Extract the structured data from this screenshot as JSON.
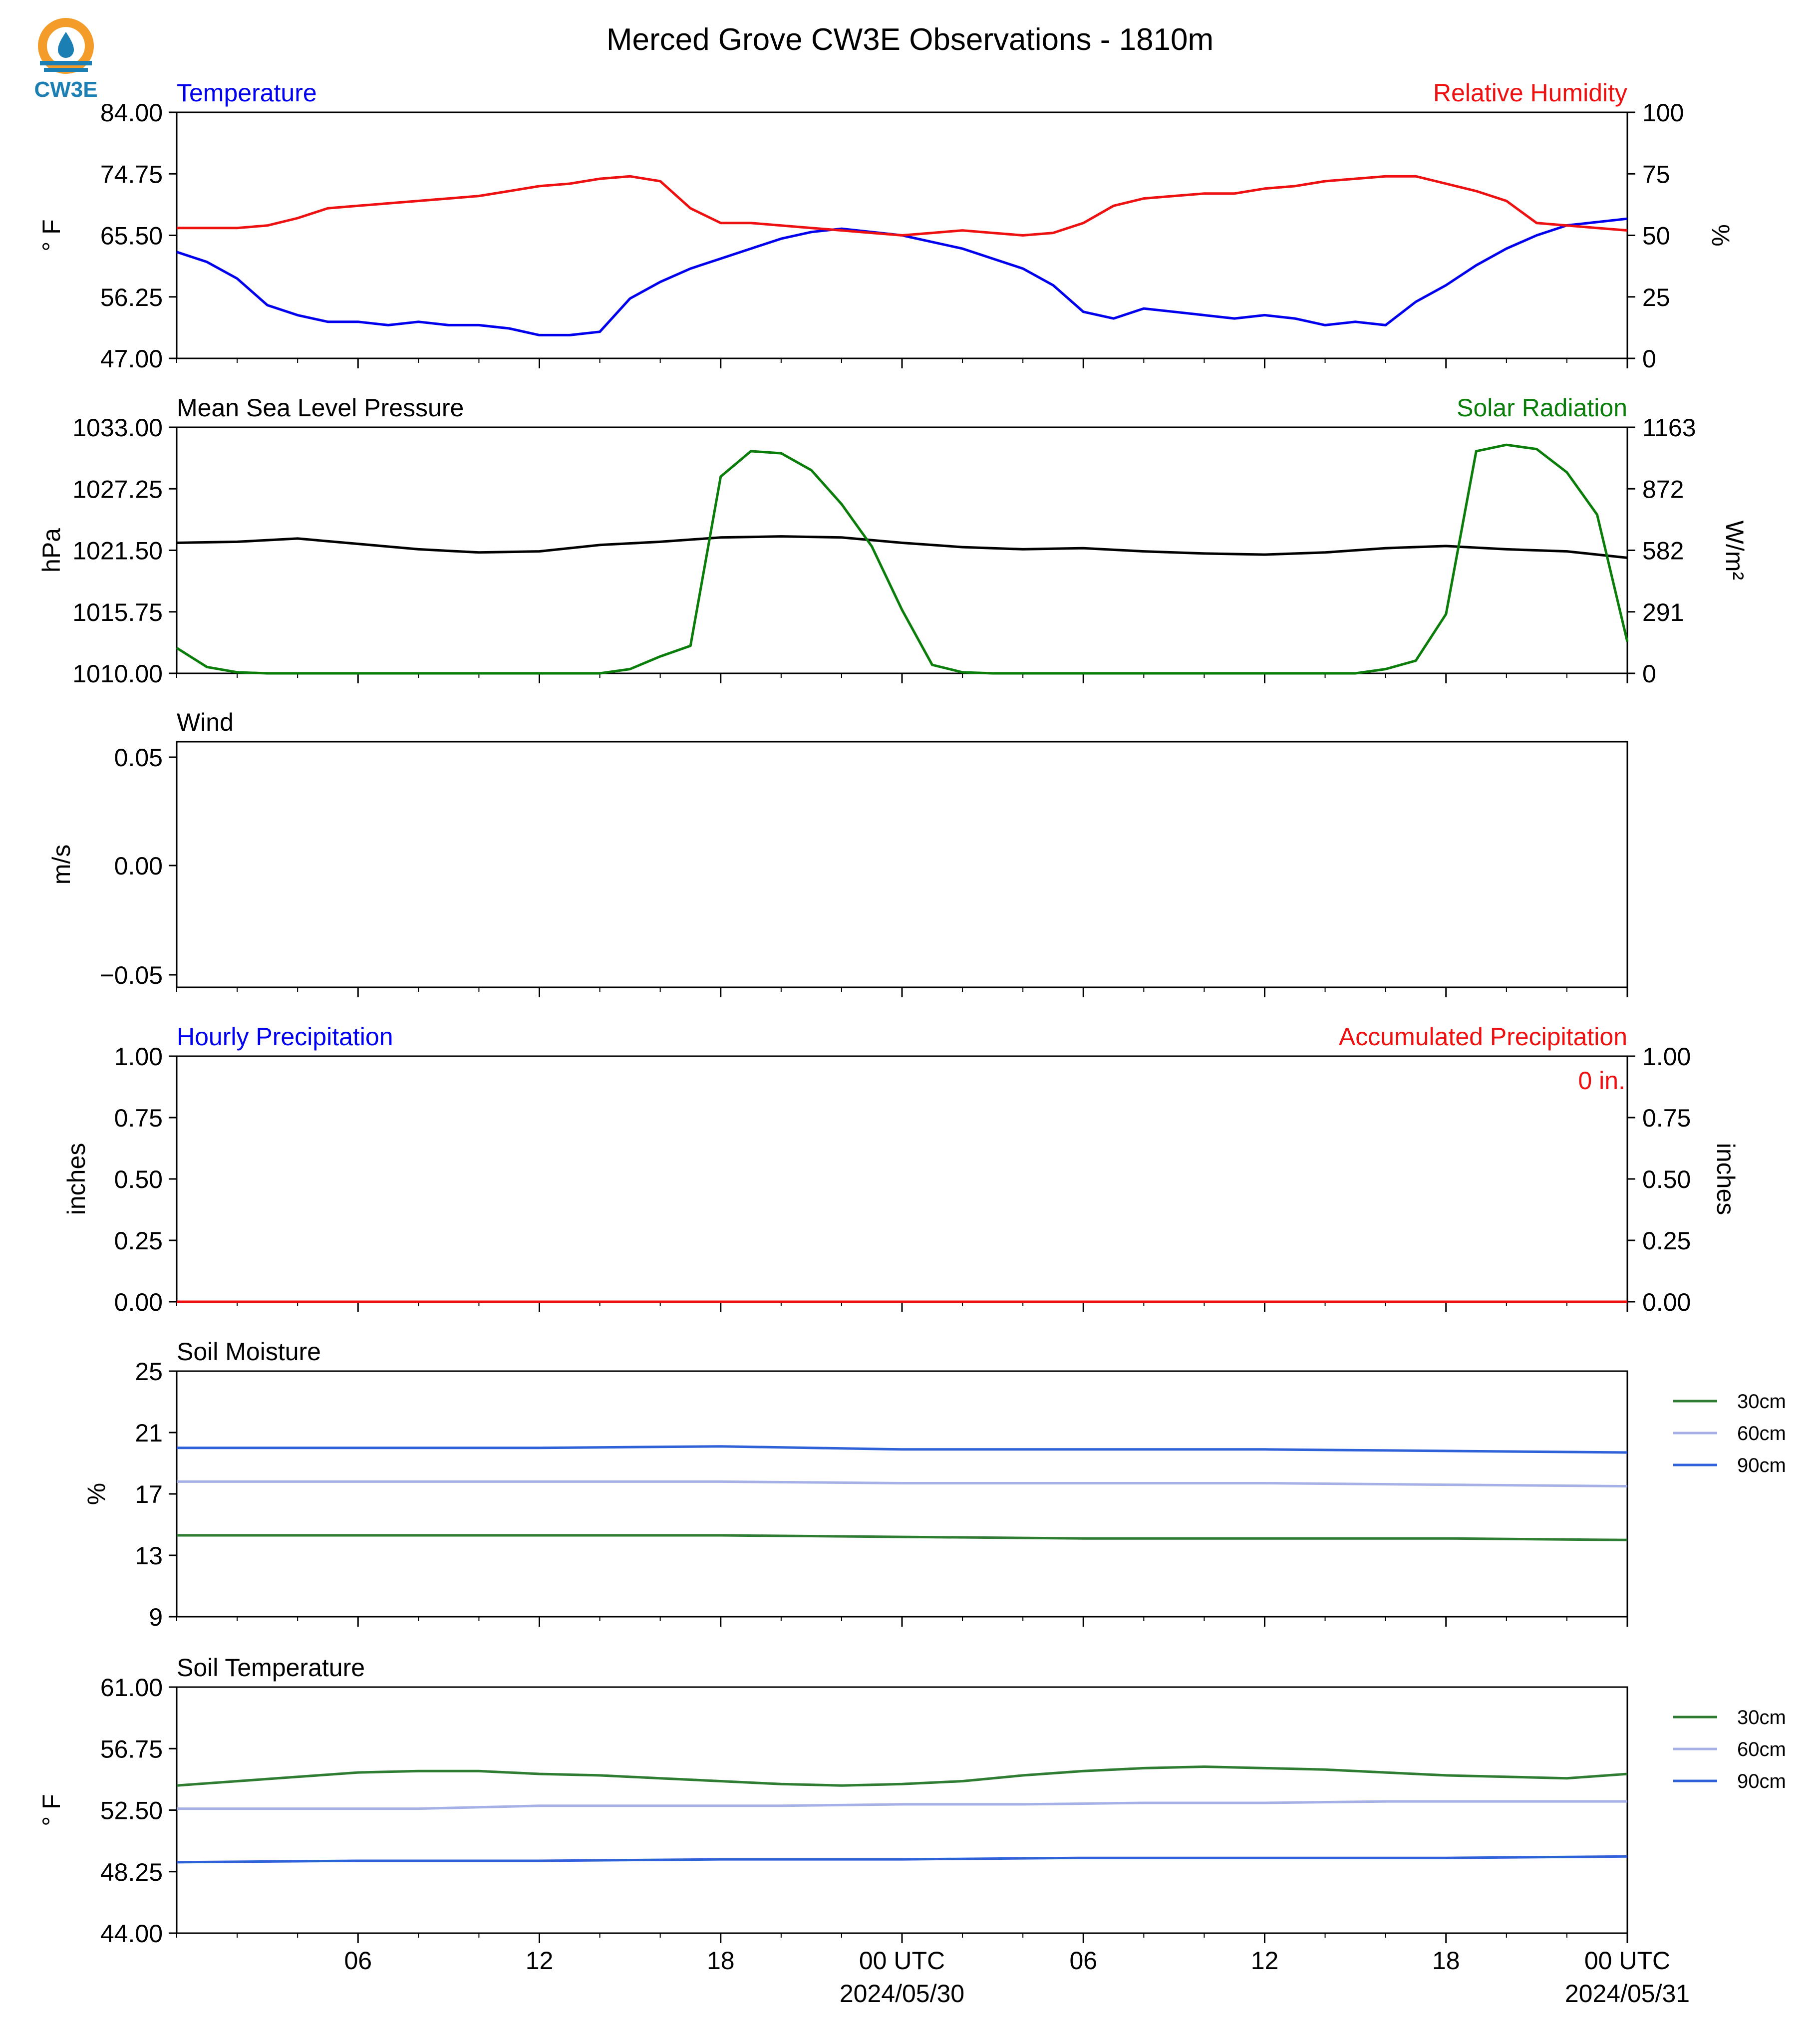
{
  "title": "Merced Grove CW3E Observations - 1810m",
  "logo": {
    "text": "CW3E",
    "colors": {
      "ring": "#f39c2a",
      "wave": "#1b7fb3",
      "text": "#1b7fb3"
    }
  },
  "x_axis": {
    "tick_labels": [
      "06",
      "12",
      "18",
      "00 UTC",
      "06",
      "12",
      "18",
      "00 UTC"
    ],
    "date_labels": [
      "2024/05/30",
      "2024/05/31"
    ]
  },
  "panels": {
    "temp_rh": {
      "left_title": "Temperature",
      "right_title": "Relative Humidity",
      "left_unit": "$^\\circ$F",
      "right_unit": "%",
      "left_ticks": [
        "84.00",
        "74.75",
        "65.50",
        "56.25",
        "47.00"
      ],
      "right_ticks": [
        "100",
        "75",
        "50",
        "25",
        "0"
      ]
    },
    "pressure_solar": {
      "left_title": "Mean Sea Level Pressure",
      "right_title": "Solar Radiation",
      "left_unit": "hPa",
      "right_unit": "W/m²",
      "left_ticks": [
        "1033.00",
        "1027.25",
        "1021.50",
        "1015.75",
        "1010.00"
      ],
      "right_ticks": [
        "1163",
        "872",
        "582",
        "291",
        "0"
      ]
    },
    "wind": {
      "left_title": "Wind",
      "left_unit": "m/s",
      "left_ticks": [
        "0.05",
        "0.00",
        "−0.05"
      ]
    },
    "precip": {
      "left_title": "Hourly Precipitation",
      "right_title": "Accumulated Precipitation",
      "left_unit": "inches",
      "right_unit": "inches",
      "left_ticks": [
        "1.00",
        "0.75",
        "0.50",
        "0.25",
        "0.00"
      ],
      "right_ticks": [
        "1.00",
        "0.75",
        "0.50",
        "0.25",
        "0.00"
      ],
      "total_label": "0 in."
    },
    "soil_moisture": {
      "left_title": "Soil Moisture",
      "left_unit": "%",
      "left_ticks": [
        "25",
        "21",
        "17",
        "13",
        "9"
      ],
      "legend": [
        "30cm",
        "60cm",
        "90cm"
      ]
    },
    "soil_temp": {
      "left_title": "Soil Temperature",
      "left_unit": "$^\\circ$F",
      "left_ticks": [
        "61.00",
        "56.75",
        "52.50",
        "48.25",
        "44.00"
      ],
      "legend": [
        "30cm",
        "60cm",
        "90cm"
      ]
    }
  },
  "colors": {
    "temperature": "#0000ee",
    "humidity": "#ee1111",
    "pressure": "#000000",
    "solar": "#0a7d0a",
    "precip_hourly": "#0000ee",
    "precip_accum": "#ee1111",
    "soil_30cm": "#2e7d32",
    "soil_60cm": "#a4b0e6",
    "soil_90cm": "#2f62d8"
  },
  "chart_data": [
    {
      "type": "line",
      "x_unit": "hours",
      "xlim": [
        1,
        49
      ],
      "ylim": [
        47,
        84
      ],
      "y2lim": [
        0,
        100
      ],
      "series": [
        {
          "name": "Temperature",
          "axis": "left",
          "x": [
            1,
            2,
            3,
            4,
            5,
            6,
            7,
            8,
            9,
            10,
            11,
            12,
            13,
            14,
            15,
            16,
            17,
            18,
            19,
            20,
            21,
            22,
            23,
            24,
            25,
            26,
            27,
            28,
            29,
            30,
            31,
            32,
            33,
            34,
            35,
            36,
            37,
            38,
            39,
            40,
            41,
            42,
            43,
            44,
            45,
            46,
            47,
            48,
            49
          ],
          "values": [
            63.0,
            61.5,
            59.0,
            55.0,
            53.5,
            52.5,
            52.5,
            52.0,
            52.5,
            52.0,
            52.0,
            51.5,
            50.5,
            50.5,
            51.0,
            56.0,
            58.5,
            60.5,
            62.0,
            63.5,
            65.0,
            66.0,
            66.5,
            66.0,
            65.5,
            64.5,
            63.5,
            62.0,
            60.5,
            58.0,
            54.0,
            53.0,
            54.5,
            54.0,
            53.5,
            53.0,
            53.5,
            53.0,
            52.0,
            52.5,
            52.0,
            55.5,
            58.0,
            61.0,
            63.5,
            65.5,
            67.0,
            67.5,
            68.0
          ]
        },
        {
          "name": "Relative Humidity",
          "axis": "right",
          "x": [
            1,
            2,
            3,
            4,
            5,
            6,
            7,
            8,
            9,
            10,
            11,
            12,
            13,
            14,
            15,
            16,
            17,
            18,
            19,
            20,
            21,
            22,
            23,
            24,
            25,
            26,
            27,
            28,
            29,
            30,
            31,
            32,
            33,
            34,
            35,
            36,
            37,
            38,
            39,
            40,
            41,
            42,
            43,
            44,
            45,
            46,
            47,
            48,
            49
          ],
          "values": [
            53,
            53,
            53,
            54,
            57,
            61,
            62,
            63,
            64,
            65,
            66,
            68,
            70,
            71,
            73,
            74,
            72,
            61,
            55,
            55,
            54,
            53,
            52,
            51,
            50,
            51,
            52,
            51,
            50,
            51,
            55,
            62,
            65,
            66,
            67,
            67,
            69,
            70,
            72,
            73,
            74,
            74,
            71,
            68,
            64,
            55,
            54,
            53,
            52
          ]
        }
      ]
    },
    {
      "type": "line",
      "x_unit": "hours",
      "xlim": [
        1,
        49
      ],
      "ylim": [
        1010,
        1033
      ],
      "y2lim": [
        0,
        1163
      ],
      "series": [
        {
          "name": "Mean Sea Level Pressure",
          "axis": "left",
          "x": [
            1,
            3,
            5,
            7,
            9,
            11,
            13,
            15,
            17,
            19,
            21,
            23,
            25,
            27,
            29,
            31,
            33,
            35,
            37,
            39,
            41,
            43,
            45,
            47,
            49
          ],
          "values": [
            1022.2,
            1022.3,
            1022.6,
            1022.1,
            1021.6,
            1021.3,
            1021.4,
            1022.0,
            1022.3,
            1022.7,
            1022.8,
            1022.7,
            1022.2,
            1021.8,
            1021.6,
            1021.7,
            1021.4,
            1021.2,
            1021.1,
            1021.3,
            1021.7,
            1021.9,
            1021.6,
            1021.4,
            1020.8
          ]
        },
        {
          "name": "Solar Radiation",
          "axis": "right",
          "x": [
            1,
            2,
            3,
            4,
            5,
            6,
            7,
            8,
            9,
            10,
            11,
            12,
            13,
            14,
            15,
            16,
            17,
            18,
            19,
            20,
            21,
            22,
            23,
            24,
            25,
            26,
            27,
            28,
            29,
            30,
            31,
            32,
            33,
            34,
            35,
            36,
            37,
            38,
            39,
            40,
            41,
            42,
            43,
            44,
            45,
            46,
            47,
            48,
            49
          ],
          "values": [
            120,
            30,
            5,
            0,
            0,
            0,
            0,
            0,
            0,
            0,
            0,
            0,
            0,
            0,
            0,
            20,
            80,
            130,
            930,
            1050,
            1040,
            960,
            800,
            600,
            300,
            40,
            5,
            0,
            0,
            0,
            0,
            0,
            0,
            0,
            0,
            0,
            0,
            0,
            0,
            0,
            20,
            60,
            280,
            1050,
            1080,
            1060,
            950,
            750,
            150
          ]
        }
      ]
    },
    {
      "type": "line",
      "x_unit": "hours",
      "xlim": [
        1,
        49
      ],
      "ylim": [
        -0.055,
        0.055
      ],
      "series": []
    },
    {
      "type": "line",
      "x_unit": "hours",
      "xlim": [
        1,
        49
      ],
      "ylim": [
        0,
        1
      ],
      "y2lim": [
        0,
        1
      ],
      "series": [
        {
          "name": "Hourly Precipitation",
          "axis": "left",
          "x": [
            1,
            49
          ],
          "values": [
            0,
            0
          ]
        },
        {
          "name": "Accumulated Precipitation",
          "axis": "right",
          "x": [
            1,
            49
          ],
          "values": [
            0,
            0
          ]
        }
      ]
    },
    {
      "type": "line",
      "x_unit": "hours",
      "xlim": [
        1,
        49
      ],
      "ylim": [
        9,
        25
      ],
      "series": [
        {
          "name": "30cm",
          "x": [
            1,
            7,
            13,
            19,
            25,
            31,
            37,
            43,
            49
          ],
          "values": [
            14.3,
            14.3,
            14.3,
            14.3,
            14.2,
            14.1,
            14.1,
            14.1,
            14.0
          ]
        },
        {
          "name": "60cm",
          "x": [
            1,
            7,
            13,
            19,
            25,
            31,
            37,
            43,
            49
          ],
          "values": [
            17.8,
            17.8,
            17.8,
            17.8,
            17.7,
            17.7,
            17.7,
            17.6,
            17.5
          ]
        },
        {
          "name": "90cm",
          "x": [
            1,
            7,
            13,
            19,
            25,
            31,
            37,
            43,
            49
          ],
          "values": [
            20.0,
            20.0,
            20.0,
            20.1,
            19.9,
            19.9,
            19.9,
            19.8,
            19.7
          ]
        }
      ]
    },
    {
      "type": "line",
      "x_unit": "hours",
      "xlim": [
        1,
        49
      ],
      "ylim": [
        44,
        61
      ],
      "series": [
        {
          "name": "30cm",
          "x": [
            1,
            3,
            5,
            7,
            9,
            11,
            13,
            15,
            17,
            19,
            21,
            23,
            25,
            27,
            29,
            31,
            33,
            35,
            37,
            39,
            41,
            43,
            45,
            47,
            49
          ],
          "values": [
            54.2,
            54.5,
            54.8,
            55.1,
            55.2,
            55.2,
            55.0,
            54.9,
            54.7,
            54.5,
            54.3,
            54.2,
            54.3,
            54.5,
            54.9,
            55.2,
            55.4,
            55.5,
            55.4,
            55.3,
            55.1,
            54.9,
            54.8,
            54.7,
            55.0
          ]
        },
        {
          "name": "60cm",
          "x": [
            1,
            5,
            9,
            13,
            17,
            21,
            25,
            29,
            33,
            37,
            41,
            45,
            49
          ],
          "values": [
            52.6,
            52.6,
            52.6,
            52.8,
            52.8,
            52.8,
            52.9,
            52.9,
            53.0,
            53.0,
            53.1,
            53.1,
            53.1
          ]
        },
        {
          "name": "90cm",
          "x": [
            1,
            7,
            13,
            19,
            25,
            31,
            37,
            43,
            49
          ],
          "values": [
            48.9,
            49.0,
            49.0,
            49.1,
            49.1,
            49.2,
            49.2,
            49.2,
            49.3
          ]
        }
      ]
    }
  ]
}
